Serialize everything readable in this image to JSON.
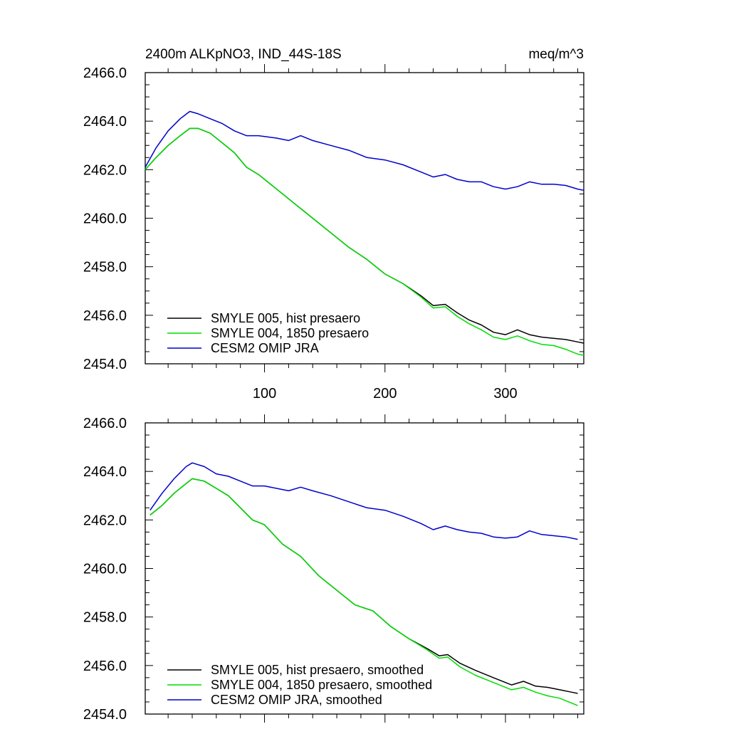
{
  "chart_data": [
    {
      "type": "line",
      "title_left": "2400m ALKpNO3, IND_44S-18S",
      "title_right": "meq/m^3",
      "xlim": [
        1,
        365
      ],
      "ylim": [
        2454,
        2466
      ],
      "yticks": [
        2454,
        2456,
        2458,
        2460,
        2462,
        2464,
        2466
      ],
      "ytick_labels": [
        "2454.0",
        "2456.0",
        "2458.0",
        "2460.0",
        "2462.0",
        "2464.0",
        "2466.0"
      ],
      "xticks": [
        100,
        200,
        300
      ],
      "xtick_labels": [
        "100",
        "200",
        "300"
      ],
      "legend": [
        "SMYLE 005, hist presaero",
        "SMYLE 004, 1850 presaero",
        "CESM2 OMIP JRA"
      ],
      "series": [
        {
          "name": "SMYLE 005, hist presaero",
          "color": "#000000",
          "x": [
            1,
            10,
            20,
            30,
            38,
            45,
            55,
            65,
            75,
            85,
            95,
            110,
            125,
            140,
            155,
            170,
            185,
            200,
            215,
            230,
            240,
            250,
            260,
            270,
            280,
            290,
            300,
            310,
            320,
            330,
            340,
            350,
            360,
            365
          ],
          "y": [
            2462.0,
            2462.5,
            2463.0,
            2463.4,
            2463.7,
            2463.7,
            2463.5,
            2463.1,
            2462.7,
            2462.1,
            2461.8,
            2461.2,
            2460.6,
            2460.0,
            2459.4,
            2458.8,
            2458.3,
            2457.7,
            2457.3,
            2456.8,
            2456.4,
            2456.45,
            2456.1,
            2455.8,
            2455.6,
            2455.3,
            2455.2,
            2455.4,
            2455.2,
            2455.1,
            2455.05,
            2455.0,
            2454.9,
            2454.85
          ]
        },
        {
          "name": "SMYLE 004, 1850 presaero",
          "color": "#00dd00",
          "x": [
            1,
            10,
            20,
            30,
            38,
            45,
            55,
            65,
            75,
            85,
            95,
            110,
            125,
            140,
            155,
            170,
            185,
            200,
            215,
            230,
            240,
            250,
            260,
            270,
            280,
            290,
            300,
            310,
            320,
            330,
            340,
            350,
            360,
            365
          ],
          "y": [
            2462.0,
            2462.5,
            2463.0,
            2463.4,
            2463.7,
            2463.7,
            2463.5,
            2463.1,
            2462.7,
            2462.1,
            2461.8,
            2461.2,
            2460.6,
            2460.0,
            2459.4,
            2458.8,
            2458.3,
            2457.7,
            2457.3,
            2456.75,
            2456.3,
            2456.35,
            2455.95,
            2455.65,
            2455.4,
            2455.1,
            2455.0,
            2455.15,
            2454.95,
            2454.8,
            2454.75,
            2454.6,
            2454.4,
            2454.35
          ]
        },
        {
          "name": "CESM2 OMIP JRA",
          "color": "#0000cc",
          "x": [
            1,
            10,
            20,
            30,
            38,
            45,
            55,
            65,
            75,
            85,
            95,
            110,
            120,
            130,
            140,
            155,
            170,
            185,
            200,
            215,
            230,
            240,
            250,
            260,
            270,
            280,
            290,
            300,
            310,
            320,
            330,
            340,
            350,
            360,
            365
          ],
          "y": [
            2462.1,
            2462.9,
            2463.6,
            2464.1,
            2464.4,
            2464.3,
            2464.1,
            2463.9,
            2463.6,
            2463.4,
            2463.4,
            2463.3,
            2463.2,
            2463.4,
            2463.2,
            2463.0,
            2462.8,
            2462.5,
            2462.4,
            2462.2,
            2461.9,
            2461.7,
            2461.8,
            2461.6,
            2461.5,
            2461.5,
            2461.3,
            2461.2,
            2461.3,
            2461.5,
            2461.4,
            2461.4,
            2461.35,
            2461.2,
            2461.15
          ]
        }
      ]
    },
    {
      "type": "line",
      "xlim": [
        1,
        365
      ],
      "ylim": [
        2454,
        2466
      ],
      "yticks": [
        2454,
        2456,
        2458,
        2460,
        2462,
        2464,
        2466
      ],
      "ytick_labels": [
        "2454.0",
        "2456.0",
        "2458.0",
        "2460.0",
        "2462.0",
        "2464.0",
        "2466.0"
      ],
      "xticks": [
        100,
        200,
        300
      ],
      "legend": [
        "SMYLE 005, hist presaero, smoothed",
        "SMYLE 004, 1850 presaero, smoothed",
        "CESM2 OMIP JRA, smoothed"
      ],
      "series": [
        {
          "name": "SMYLE 005, hist presaero, smoothed",
          "color": "#000000",
          "x": [
            5,
            15,
            25,
            35,
            40,
            50,
            60,
            70,
            80,
            90,
            100,
            115,
            130,
            145,
            160,
            175,
            190,
            205,
            220,
            235,
            245,
            252,
            262,
            275,
            290,
            305,
            315,
            325,
            335,
            345,
            355,
            360
          ],
          "y": [
            2462.2,
            2462.6,
            2463.1,
            2463.5,
            2463.7,
            2463.6,
            2463.3,
            2463.0,
            2462.5,
            2462.0,
            2461.8,
            2461.0,
            2460.5,
            2459.7,
            2459.1,
            2458.5,
            2458.25,
            2457.6,
            2457.1,
            2456.7,
            2456.4,
            2456.45,
            2456.1,
            2455.8,
            2455.5,
            2455.2,
            2455.35,
            2455.15,
            2455.1,
            2455.0,
            2454.9,
            2454.85
          ]
        },
        {
          "name": "SMYLE 004, 1850 presaero, smoothed",
          "color": "#00dd00",
          "x": [
            5,
            15,
            25,
            35,
            40,
            50,
            60,
            70,
            80,
            90,
            100,
            115,
            130,
            145,
            160,
            175,
            190,
            205,
            220,
            235,
            245,
            252,
            262,
            275,
            290,
            305,
            315,
            325,
            335,
            345,
            355,
            360
          ],
          "y": [
            2462.2,
            2462.6,
            2463.1,
            2463.5,
            2463.7,
            2463.6,
            2463.3,
            2463.0,
            2462.5,
            2462.0,
            2461.8,
            2461.0,
            2460.5,
            2459.7,
            2459.1,
            2458.5,
            2458.25,
            2457.6,
            2457.1,
            2456.65,
            2456.3,
            2456.35,
            2455.95,
            2455.6,
            2455.3,
            2455.0,
            2455.1,
            2454.9,
            2454.75,
            2454.65,
            2454.45,
            2454.35
          ]
        },
        {
          "name": "CESM2 OMIP JRA, smoothed",
          "color": "#0000cc",
          "x": [
            5,
            15,
            25,
            35,
            40,
            50,
            60,
            70,
            80,
            90,
            100,
            110,
            120,
            130,
            140,
            155,
            170,
            185,
            200,
            215,
            230,
            240,
            250,
            260,
            270,
            280,
            290,
            300,
            310,
            320,
            330,
            340,
            350,
            360
          ],
          "y": [
            2462.4,
            2463.1,
            2463.7,
            2464.2,
            2464.35,
            2464.2,
            2463.9,
            2463.8,
            2463.6,
            2463.4,
            2463.4,
            2463.3,
            2463.2,
            2463.35,
            2463.2,
            2463.0,
            2462.75,
            2462.5,
            2462.4,
            2462.15,
            2461.85,
            2461.6,
            2461.75,
            2461.6,
            2461.5,
            2461.45,
            2461.3,
            2461.25,
            2461.3,
            2461.55,
            2461.4,
            2461.35,
            2461.3,
            2461.2
          ]
        }
      ]
    }
  ]
}
